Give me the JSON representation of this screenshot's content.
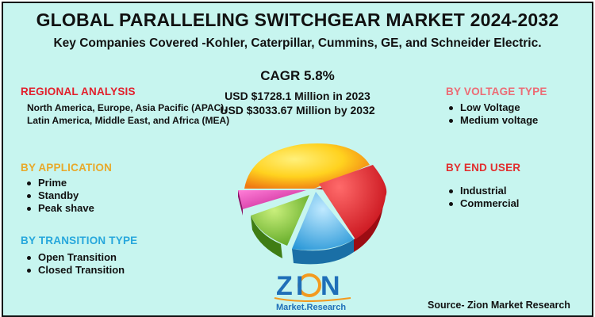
{
  "header": {
    "title": "GLOBAL PARALLELING SWITCHGEAR MARKET 2024-2032",
    "subtitle": "Key Companies Covered -Kohler, Caterpillar, Cummins, GE, and Schneider Electric."
  },
  "stats": {
    "cagr": "CAGR 5.8%",
    "value_2023": "USD $1728.1 Million in 2023",
    "value_2032": "USD $3033.67 Million by 2032"
  },
  "regional": {
    "title": "REGIONAL ANALYSIS",
    "text": "North America, Europe, Asia Pacific (APAC), Latin America, Middle East, and Africa (MEA)"
  },
  "application": {
    "title": "BY APPLICATION",
    "items": [
      "Prime",
      "Standby",
      "Peak shave"
    ]
  },
  "transition": {
    "title": "BY TRANSITION TYPE",
    "items": [
      "Open Transition",
      "Closed Transition"
    ]
  },
  "voltage": {
    "title": "BY VOLTAGE TYPE",
    "items": [
      "Low Voltage",
      "Medium voltage"
    ]
  },
  "end_user": {
    "title": "BY END USER",
    "items": [
      "Industrial",
      "Commercial"
    ]
  },
  "logo": {
    "brand": "Zion",
    "tagline": "Market.Research"
  },
  "footer": {
    "source": "Source- Zion Market Research"
  },
  "colors": {
    "background": "#c7f5ef",
    "regional": "#e2202c",
    "application": "#e8a92b",
    "transition": "#27a7dc",
    "voltage": "#ec6c75",
    "end_user": "#e12e2e",
    "logo_blue": "#1f6fb8",
    "logo_orange": "#f39a1f"
  }
}
